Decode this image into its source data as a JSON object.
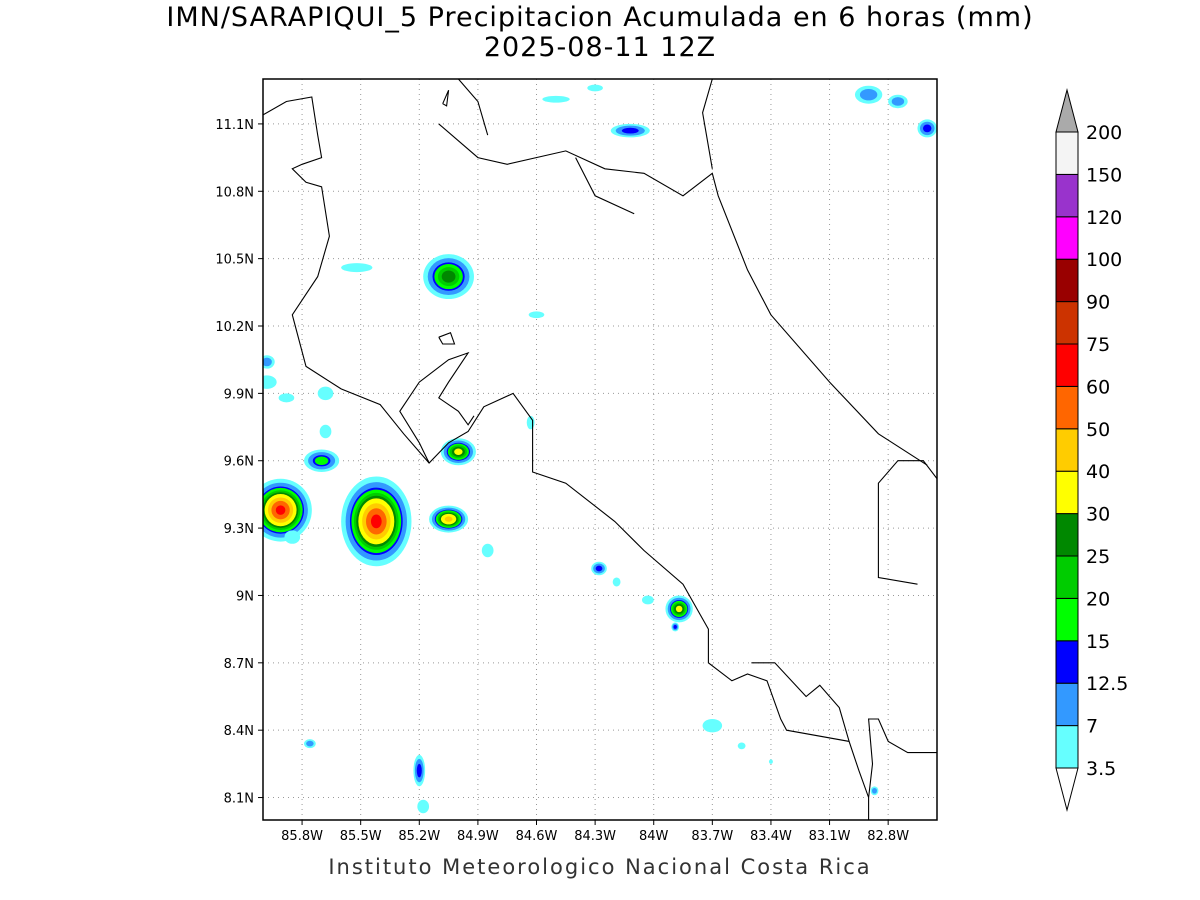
{
  "title": "IMN/SARAPIQUI_5 Precipitacion Acumulada en 6 horas (mm)",
  "subtitle": "2025-08-11 12Z",
  "credit": "Instituto Meteorologico Nacional Costa Rica",
  "map": {
    "lon_range": [
      -86.0,
      -82.55
    ],
    "lat_range": [
      8.0,
      11.3
    ],
    "lat_ticks": [
      {
        "value": 11.1,
        "label": "11.1N"
      },
      {
        "value": 10.8,
        "label": "10.8N"
      },
      {
        "value": 10.5,
        "label": "10.5N"
      },
      {
        "value": 10.2,
        "label": "10.2N"
      },
      {
        "value": 9.9,
        "label": "9.9N"
      },
      {
        "value": 9.6,
        "label": "9.6N"
      },
      {
        "value": 9.3,
        "label": "9.3N"
      },
      {
        "value": 9.0,
        "label": "9N"
      },
      {
        "value": 8.7,
        "label": "8.7N"
      },
      {
        "value": 8.4,
        "label": "8.4N"
      },
      {
        "value": 8.1,
        "label": "8.1N"
      }
    ],
    "lon_ticks": [
      {
        "value": -85.8,
        "label": "85.8W"
      },
      {
        "value": -85.5,
        "label": "85.5W"
      },
      {
        "value": -85.2,
        "label": "85.2W"
      },
      {
        "value": -84.9,
        "label": "84.9W"
      },
      {
        "value": -84.6,
        "label": "84.6W"
      },
      {
        "value": -84.3,
        "label": "84.3W"
      },
      {
        "value": -84.0,
        "label": "84W"
      },
      {
        "value": -83.7,
        "label": "83.7W"
      },
      {
        "value": -83.4,
        "label": "83.4W"
      },
      {
        "value": -83.1,
        "label": "83.1W"
      },
      {
        "value": -82.8,
        "label": "82.8W"
      }
    ],
    "grid": "dotted",
    "coastline_color": "#000000"
  },
  "colorbar": {
    "levels": [
      "3.5",
      "7",
      "12.5",
      "15",
      "20",
      "25",
      "30",
      "40",
      "50",
      "60",
      "75",
      "90",
      "100",
      "120",
      "150",
      "200"
    ],
    "colors": [
      "#66ffff",
      "#3399ff",
      "#0000ff",
      "#00ff00",
      "#00cc00",
      "#008800",
      "#ffff00",
      "#ffcc00",
      "#ff6600",
      "#ff0000",
      "#cc3300",
      "#990000",
      "#ff00ff",
      "#9933cc",
      "#f4f4f4"
    ],
    "over_color": "#aaaaaa",
    "under_color": "#ffffff"
  },
  "precip_cells": [
    {
      "lon": -85.05,
      "lat": 10.42,
      "rx": 0.13,
      "ry": 0.1,
      "max": 25
    },
    {
      "lon": -85.0,
      "lat": 9.64,
      "rx": 0.09,
      "ry": 0.06,
      "max": 30
    },
    {
      "lon": -85.91,
      "lat": 9.38,
      "rx": 0.16,
      "ry": 0.14,
      "max": 60
    },
    {
      "lon": -85.42,
      "lat": 9.33,
      "rx": 0.18,
      "ry": 0.2,
      "max": 60
    },
    {
      "lon": -85.05,
      "lat": 9.34,
      "rx": 0.1,
      "ry": 0.06,
      "max": 40
    },
    {
      "lon": -83.87,
      "lat": 8.94,
      "rx": 0.07,
      "ry": 0.06,
      "max": 30
    },
    {
      "lon": -85.7,
      "lat": 9.6,
      "rx": 0.09,
      "ry": 0.05,
      "max": 15
    },
    {
      "lon": -84.12,
      "lat": 11.07,
      "rx": 0.1,
      "ry": 0.03,
      "max": 12.5
    },
    {
      "lon": -85.2,
      "lat": 8.22,
      "rx": 0.03,
      "ry": 0.07,
      "max": 12.5
    },
    {
      "lon": -84.28,
      "lat": 9.12,
      "rx": 0.04,
      "ry": 0.03,
      "max": 12.5
    },
    {
      "lon": -83.89,
      "lat": 8.86,
      "rx": 0.02,
      "ry": 0.02,
      "max": 12.5
    },
    {
      "lon": -82.6,
      "lat": 11.08,
      "rx": 0.05,
      "ry": 0.04,
      "max": 12.5
    },
    {
      "lon": -82.9,
      "lat": 11.23,
      "rx": 0.07,
      "ry": 0.04,
      "max": 7
    },
    {
      "lon": -82.75,
      "lat": 11.2,
      "rx": 0.05,
      "ry": 0.03,
      "max": 7
    },
    {
      "lon": -85.98,
      "lat": 10.04,
      "rx": 0.04,
      "ry": 0.03,
      "max": 7
    },
    {
      "lon": -85.76,
      "lat": 8.34,
      "rx": 0.03,
      "ry": 0.02,
      "max": 7
    },
    {
      "lon": -82.87,
      "lat": 8.13,
      "rx": 0.02,
      "ry": 0.02,
      "max": 7
    },
    {
      "lon": -85.98,
      "lat": 9.95,
      "rx": 0.05,
      "ry": 0.03,
      "max": 3.5
    },
    {
      "lon": -85.88,
      "lat": 9.88,
      "rx": 0.04,
      "ry": 0.02,
      "max": 3.5
    },
    {
      "lon": -85.68,
      "lat": 9.9,
      "rx": 0.04,
      "ry": 0.03,
      "max": 3.5
    },
    {
      "lon": -85.52,
      "lat": 10.46,
      "rx": 0.08,
      "ry": 0.02,
      "max": 3.5
    },
    {
      "lon": -84.6,
      "lat": 10.25,
      "rx": 0.04,
      "ry": 0.015,
      "max": 3.5
    },
    {
      "lon": -84.5,
      "lat": 11.21,
      "rx": 0.07,
      "ry": 0.015,
      "max": 3.5
    },
    {
      "lon": -84.3,
      "lat": 11.26,
      "rx": 0.04,
      "ry": 0.015,
      "max": 3.5
    },
    {
      "lon": -85.85,
      "lat": 9.26,
      "rx": 0.04,
      "ry": 0.03,
      "max": 3.5
    },
    {
      "lon": -85.68,
      "lat": 9.73,
      "rx": 0.03,
      "ry": 0.03,
      "max": 3.5
    },
    {
      "lon": -84.85,
      "lat": 9.2,
      "rx": 0.03,
      "ry": 0.03,
      "max": 3.5
    },
    {
      "lon": -84.63,
      "lat": 9.77,
      "rx": 0.02,
      "ry": 0.03,
      "max": 3.5
    },
    {
      "lon": -84.19,
      "lat": 9.06,
      "rx": 0.02,
      "ry": 0.02,
      "max": 3.5
    },
    {
      "lon": -84.03,
      "lat": 8.98,
      "rx": 0.03,
      "ry": 0.02,
      "max": 3.5
    },
    {
      "lon": -85.18,
      "lat": 8.06,
      "rx": 0.03,
      "ry": 0.03,
      "max": 3.5
    },
    {
      "lon": -83.7,
      "lat": 8.42,
      "rx": 0.05,
      "ry": 0.03,
      "max": 3.5
    },
    {
      "lon": -83.55,
      "lat": 8.33,
      "rx": 0.02,
      "ry": 0.015,
      "max": 3.5
    },
    {
      "lon": -83.4,
      "lat": 8.26,
      "rx": 0.01,
      "ry": 0.01,
      "max": 3.5
    }
  ],
  "coastlines": [
    [
      [
        -86.0,
        11.14
      ],
      [
        -85.88,
        11.2
      ],
      [
        -85.75,
        11.22
      ],
      [
        -85.72,
        11.05
      ],
      [
        -85.7,
        10.95
      ],
      [
        -85.8,
        10.92
      ],
      [
        -85.85,
        10.9
      ],
      [
        -85.78,
        10.84
      ],
      [
        -85.7,
        10.82
      ],
      [
        -85.66,
        10.6
      ],
      [
        -85.72,
        10.42
      ],
      [
        -85.85,
        10.25
      ],
      [
        -85.78,
        10.02
      ],
      [
        -85.6,
        9.92
      ],
      [
        -85.4,
        9.85
      ],
      [
        -85.28,
        9.72
      ],
      [
        -85.15,
        9.59
      ],
      [
        -85.05,
        9.68
      ],
      [
        -84.95,
        9.73
      ],
      [
        -84.87,
        9.84
      ],
      [
        -84.72,
        9.9
      ],
      [
        -84.62,
        9.78
      ],
      [
        -84.62,
        9.55
      ],
      [
        -84.45,
        9.5
      ],
      [
        -84.2,
        9.33
      ],
      [
        -84.05,
        9.2
      ],
      [
        -83.85,
        9.05
      ],
      [
        -83.72,
        8.85
      ],
      [
        -83.72,
        8.7
      ],
      [
        -83.6,
        8.62
      ],
      [
        -83.52,
        8.65
      ],
      [
        -83.42,
        8.62
      ],
      [
        -83.35,
        8.45
      ],
      [
        -83.32,
        8.4
      ],
      [
        -83.0,
        8.35
      ],
      [
        -82.95,
        8.22
      ],
      [
        -82.9,
        8.1
      ]
    ],
    [
      [
        -85.15,
        9.59
      ],
      [
        -85.2,
        9.68
      ],
      [
        -85.3,
        9.82
      ],
      [
        -85.2,
        9.95
      ],
      [
        -85.05,
        10.05
      ],
      [
        -84.95,
        10.08
      ],
      [
        -85.05,
        9.95
      ],
      [
        -85.1,
        9.88
      ],
      [
        -85.0,
        9.82
      ],
      [
        -84.95,
        9.76
      ],
      [
        -84.92,
        9.8
      ]
    ],
    [
      [
        -85.1,
        11.1
      ],
      [
        -84.9,
        10.95
      ],
      [
        -84.75,
        10.92
      ],
      [
        -84.45,
        10.98
      ],
      [
        -84.25,
        10.9
      ],
      [
        -84.05,
        10.88
      ],
      [
        -83.85,
        10.78
      ],
      [
        -83.7,
        10.88
      ],
      [
        -83.67,
        10.78
      ],
      [
        -83.52,
        10.45
      ],
      [
        -83.4,
        10.25
      ],
      [
        -83.1,
        9.95
      ],
      [
        -82.85,
        9.72
      ],
      [
        -82.6,
        9.58
      ]
    ],
    [
      [
        -83.7,
        11.3
      ],
      [
        -83.75,
        11.15
      ],
      [
        -83.7,
        10.9
      ]
    ],
    [
      [
        -82.55,
        8.3
      ],
      [
        -82.7,
        8.3
      ],
      [
        -82.8,
        8.35
      ],
      [
        -82.85,
        8.45
      ],
      [
        -82.9,
        8.45
      ],
      [
        -82.88,
        8.25
      ],
      [
        -82.9,
        8.1
      ],
      [
        -82.9,
        8.0
      ]
    ],
    [
      [
        -82.55,
        9.52
      ],
      [
        -82.62,
        9.6
      ],
      [
        -82.75,
        9.6
      ],
      [
        -82.85,
        9.5
      ],
      [
        -82.85,
        9.08
      ],
      [
        -82.65,
        9.05
      ]
    ],
    [
      [
        -83.5,
        8.7
      ],
      [
        -83.38,
        8.7
      ],
      [
        -83.22,
        8.55
      ],
      [
        -83.15,
        8.6
      ],
      [
        -83.05,
        8.5
      ],
      [
        -83.0,
        8.35
      ]
    ],
    [
      [
        -85.08,
        11.19
      ],
      [
        -85.06,
        11.18
      ],
      [
        -85.05,
        11.25
      ],
      [
        -85.08,
        11.19
      ]
    ],
    [
      [
        -85.1,
        10.15
      ],
      [
        -85.04,
        10.17
      ],
      [
        -85.02,
        10.12
      ],
      [
        -85.08,
        10.12
      ],
      [
        -85.1,
        10.15
      ]
    ],
    [
      [
        -85.0,
        11.3
      ],
      [
        -84.9,
        11.2
      ],
      [
        -84.85,
        11.05
      ]
    ],
    [
      [
        -84.4,
        10.95
      ],
      [
        -84.3,
        10.78
      ],
      [
        -84.1,
        10.7
      ]
    ]
  ]
}
